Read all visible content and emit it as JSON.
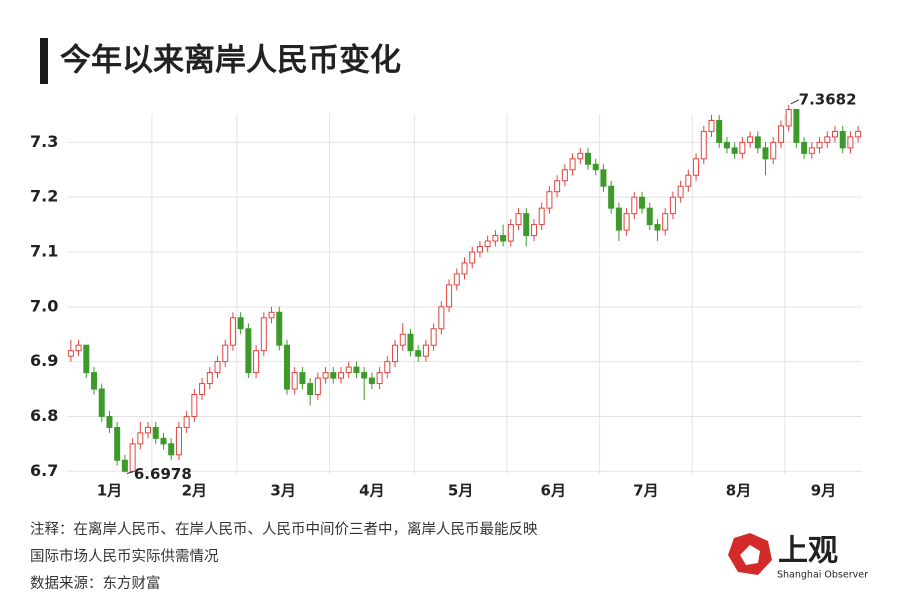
{
  "chart_data": {
    "type": "candlestick",
    "title": "今年以来离岸人民币变化",
    "up_color": "#e0453f",
    "down_color": "#3d9a2a",
    "ylim": [
      6.695,
      7.37
    ],
    "yticks": [
      6.7,
      6.8,
      6.9,
      {
        "value": 7.0,
        "label": "7.0"
      },
      7.1,
      7.2,
      7.3
    ],
    "grid": true,
    "high_label": 7.3682,
    "low_label": 6.6978,
    "months": [
      {
        "label": "1月",
        "candles": [
          [
            6.91,
            6.94,
            6.9,
            6.92
          ],
          [
            6.92,
            6.94,
            6.91,
            6.93
          ],
          [
            6.93,
            6.93,
            6.87,
            6.88
          ],
          [
            6.88,
            6.89,
            6.84,
            6.85
          ],
          [
            6.85,
            6.86,
            6.79,
            6.8
          ],
          [
            6.8,
            6.81,
            6.77,
            6.78
          ],
          [
            6.78,
            6.79,
            6.71,
            6.72
          ],
          [
            6.72,
            6.73,
            6.6978,
            6.7
          ],
          [
            6.7,
            6.76,
            6.7,
            6.75
          ],
          [
            6.75,
            6.79,
            6.74,
            6.77
          ],
          [
            6.77,
            6.79,
            6.76,
            6.78
          ]
        ]
      },
      {
        "label": "2月",
        "candles": [
          [
            6.78,
            6.79,
            6.75,
            6.76
          ],
          [
            6.76,
            6.77,
            6.74,
            6.75
          ],
          [
            6.75,
            6.76,
            6.72,
            6.73
          ],
          [
            6.73,
            6.79,
            6.72,
            6.78
          ],
          [
            6.78,
            6.81,
            6.77,
            6.8
          ],
          [
            6.8,
            6.85,
            6.79,
            6.84
          ],
          [
            6.84,
            6.87,
            6.83,
            6.86
          ],
          [
            6.86,
            6.89,
            6.85,
            6.88
          ],
          [
            6.88,
            6.91,
            6.87,
            6.9
          ],
          [
            6.9,
            6.94,
            6.89,
            6.93
          ],
          [
            6.93,
            6.99,
            6.92,
            6.98
          ]
        ]
      },
      {
        "label": "3月",
        "candles": [
          [
            6.98,
            6.99,
            6.95,
            6.96
          ],
          [
            6.96,
            6.97,
            6.87,
            6.88
          ],
          [
            6.88,
            6.93,
            6.87,
            6.92
          ],
          [
            6.92,
            6.99,
            6.91,
            6.98
          ],
          [
            6.98,
            7.0,
            6.97,
            6.99
          ],
          [
            6.99,
            7.0,
            6.92,
            6.93
          ],
          [
            6.93,
            6.94,
            6.84,
            6.85
          ],
          [
            6.85,
            6.89,
            6.84,
            6.88
          ],
          [
            6.88,
            6.89,
            6.85,
            6.86
          ],
          [
            6.86,
            6.87,
            6.82,
            6.84
          ],
          [
            6.84,
            6.88,
            6.83,
            6.87
          ],
          [
            6.87,
            6.89,
            6.86,
            6.88
          ]
        ]
      },
      {
        "label": "4月",
        "candles": [
          [
            6.88,
            6.89,
            6.86,
            6.87
          ],
          [
            6.87,
            6.89,
            6.86,
            6.88
          ],
          [
            6.88,
            6.9,
            6.87,
            6.89
          ],
          [
            6.89,
            6.9,
            6.87,
            6.88
          ],
          [
            6.88,
            6.89,
            6.83,
            6.87
          ],
          [
            6.87,
            6.88,
            6.85,
            6.86
          ],
          [
            6.86,
            6.89,
            6.85,
            6.88
          ],
          [
            6.88,
            6.91,
            6.87,
            6.9
          ],
          [
            6.9,
            6.94,
            6.89,
            6.93
          ],
          [
            6.93,
            6.97,
            6.92,
            6.95
          ],
          [
            6.95,
            6.96,
            6.91,
            6.92
          ]
        ]
      },
      {
        "label": "5月",
        "candles": [
          [
            6.92,
            6.93,
            6.9,
            6.91
          ],
          [
            6.91,
            6.94,
            6.9,
            6.93
          ],
          [
            6.93,
            6.97,
            6.92,
            6.96
          ],
          [
            6.96,
            7.01,
            6.95,
            7.0
          ],
          [
            7.0,
            7.05,
            6.99,
            7.04
          ],
          [
            7.04,
            7.07,
            7.03,
            7.06
          ],
          [
            7.06,
            7.09,
            7.05,
            7.08
          ],
          [
            7.08,
            7.11,
            7.07,
            7.1
          ],
          [
            7.1,
            7.12,
            7.09,
            7.11
          ],
          [
            7.11,
            7.13,
            7.1,
            7.12
          ],
          [
            7.12,
            7.14,
            7.11,
            7.13
          ],
          [
            7.13,
            7.15,
            7.11,
            7.12
          ]
        ]
      },
      {
        "label": "6月",
        "candles": [
          [
            7.12,
            7.16,
            7.11,
            7.15
          ],
          [
            7.15,
            7.18,
            7.14,
            7.17
          ],
          [
            7.17,
            7.18,
            7.11,
            7.13
          ],
          [
            7.13,
            7.16,
            7.12,
            7.15
          ],
          [
            7.15,
            7.19,
            7.14,
            7.18
          ],
          [
            7.18,
            7.22,
            7.17,
            7.21
          ],
          [
            7.21,
            7.24,
            7.2,
            7.23
          ],
          [
            7.23,
            7.26,
            7.22,
            7.25
          ],
          [
            7.25,
            7.28,
            7.24,
            7.27
          ],
          [
            7.27,
            7.29,
            7.26,
            7.28
          ],
          [
            7.28,
            7.29,
            7.25,
            7.26
          ],
          [
            7.26,
            7.27,
            7.24,
            7.25
          ]
        ]
      },
      {
        "label": "7月",
        "candles": [
          [
            7.25,
            7.26,
            7.21,
            7.22
          ],
          [
            7.22,
            7.23,
            7.17,
            7.18
          ],
          [
            7.18,
            7.19,
            7.12,
            7.14
          ],
          [
            7.14,
            7.18,
            7.13,
            7.17
          ],
          [
            7.17,
            7.21,
            7.16,
            7.2
          ],
          [
            7.2,
            7.21,
            7.17,
            7.18
          ],
          [
            7.18,
            7.19,
            7.14,
            7.15
          ],
          [
            7.15,
            7.16,
            7.12,
            7.14
          ],
          [
            7.14,
            7.18,
            7.13,
            7.17
          ],
          [
            7.17,
            7.21,
            7.16,
            7.2
          ],
          [
            7.2,
            7.23,
            7.19,
            7.22
          ],
          [
            7.22,
            7.25,
            7.21,
            7.24
          ]
        ]
      },
      {
        "label": "8月",
        "candles": [
          [
            7.24,
            7.28,
            7.23,
            7.27
          ],
          [
            7.27,
            7.33,
            7.26,
            7.32
          ],
          [
            7.32,
            7.35,
            7.31,
            7.34
          ],
          [
            7.34,
            7.35,
            7.29,
            7.3
          ],
          [
            7.3,
            7.31,
            7.28,
            7.29
          ],
          [
            7.29,
            7.3,
            7.27,
            7.28
          ],
          [
            7.28,
            7.31,
            7.27,
            7.3
          ],
          [
            7.3,
            7.32,
            7.29,
            7.31
          ],
          [
            7.31,
            7.32,
            7.28,
            7.29
          ],
          [
            7.29,
            7.3,
            7.24,
            7.27
          ],
          [
            7.27,
            7.31,
            7.26,
            7.3
          ],
          [
            7.3,
            7.34,
            7.29,
            7.33
          ]
        ]
      },
      {
        "label": "9月",
        "candles": [
          [
            7.33,
            7.3682,
            7.32,
            7.36
          ],
          [
            7.36,
            7.36,
            7.29,
            7.3
          ],
          [
            7.3,
            7.31,
            7.27,
            7.28
          ],
          [
            7.28,
            7.3,
            7.27,
            7.29
          ],
          [
            7.29,
            7.31,
            7.28,
            7.3
          ],
          [
            7.3,
            7.32,
            7.29,
            7.31
          ],
          [
            7.31,
            7.33,
            7.3,
            7.32
          ],
          [
            7.32,
            7.33,
            7.28,
            7.29
          ],
          [
            7.29,
            7.32,
            7.28,
            7.31
          ],
          [
            7.31,
            7.33,
            7.3,
            7.32
          ]
        ]
      }
    ],
    "notes": [
      "注释：在离岸人民币、在岸人民币、人民币中间价三者中，离岸人民币最能反映",
      "国际市场人民币实际供需情况",
      "数据来源：东方财富"
    ],
    "logo": {
      "name": "上观",
      "subtitle": "Shanghai Observer"
    }
  }
}
